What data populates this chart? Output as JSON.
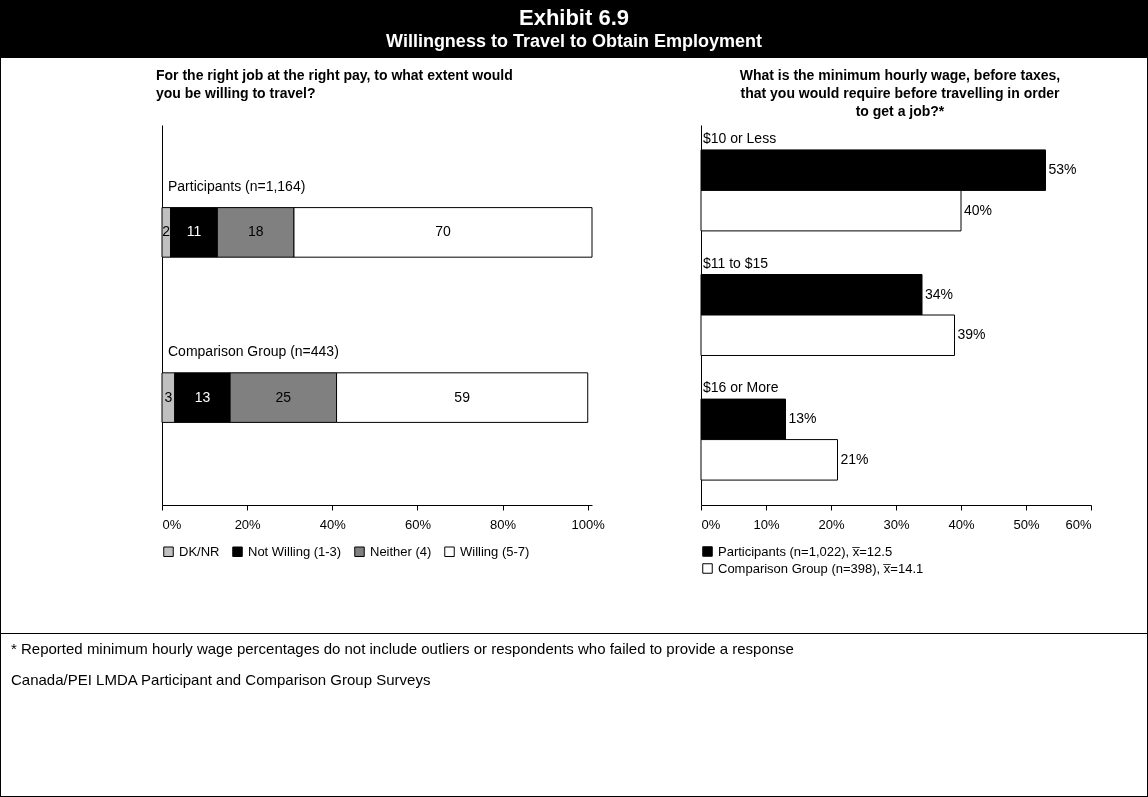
{
  "chart_data": [
    {
      "type": "other",
      "title": "Exhibit 6.9",
      "subtitle": "Willingness to Travel to Obtain Employment",
      "annotations": [
        "* Reported minimum hourly wage percentages do not include outliers or respondents who failed to provide a response",
        "Canada/PEI LMDA Participant and Comparison Group Surveys"
      ]
    },
    {
      "type": "bar",
      "title": "For the right job at the right pay, to what extent would you be willing to travel?",
      "orientation": "horizontal",
      "stacked": true,
      "categories": [
        "Participants (n=1,164)",
        "Comparison Group (n=443)"
      ],
      "series": [
        {
          "name": "DK/NR",
          "color": "#c0c0c0",
          "values": [
            2,
            3
          ]
        },
        {
          "name": "Not Willing (1-3)",
          "color": "#000000",
          "values": [
            11,
            13
          ]
        },
        {
          "name": "Neither (4)",
          "color": "#808080",
          "values": [
            18,
            25
          ]
        },
        {
          "name": "Willing (5-7)",
          "color": "#ffffff",
          "values": [
            70,
            59
          ]
        }
      ],
      "data_labels": true,
      "xlim": [
        0,
        101
      ],
      "xticks": [
        {
          "value": 0,
          "label": "0%"
        },
        {
          "value": 20,
          "label": "20%"
        },
        {
          "value": 40,
          "label": "40%"
        },
        {
          "value": 60,
          "label": "60%"
        },
        {
          "value": 80,
          "label": "80%"
        },
        {
          "value": 100,
          "label": "100%"
        }
      ],
      "legend": "bottom",
      "grid": false
    },
    {
      "type": "bar",
      "title": "What is the minimum hourly wage, before taxes, that you would require before travelling in order to get a job?*",
      "orientation": "horizontal",
      "categories": [
        "$10 or Less",
        "$11 to $15",
        "$16 or More"
      ],
      "series": [
        {
          "name": "Participants (n=1,022), x̅=12.5",
          "color": "#000000",
          "values": [
            53,
            34,
            13
          ],
          "value_labels": [
            "53%",
            "34%",
            "13%"
          ]
        },
        {
          "name": "Comparison Group (n=398), x̅=14.1",
          "color": "#ffffff",
          "values": [
            40,
            39,
            21
          ],
          "value_labels": [
            "40%",
            "39%",
            "21%"
          ]
        }
      ],
      "xlim": [
        0,
        60
      ],
      "xticks": [
        {
          "value": 0,
          "label": "0%"
        },
        {
          "value": 10,
          "label": "10%"
        },
        {
          "value": 20,
          "label": "20%"
        },
        {
          "value": 30,
          "label": "30%"
        },
        {
          "value": 40,
          "label": "40%"
        },
        {
          "value": 50,
          "label": "50%"
        },
        {
          "value": 60,
          "label": "60%"
        }
      ],
      "legend": "bottom",
      "grid": false
    }
  ]
}
